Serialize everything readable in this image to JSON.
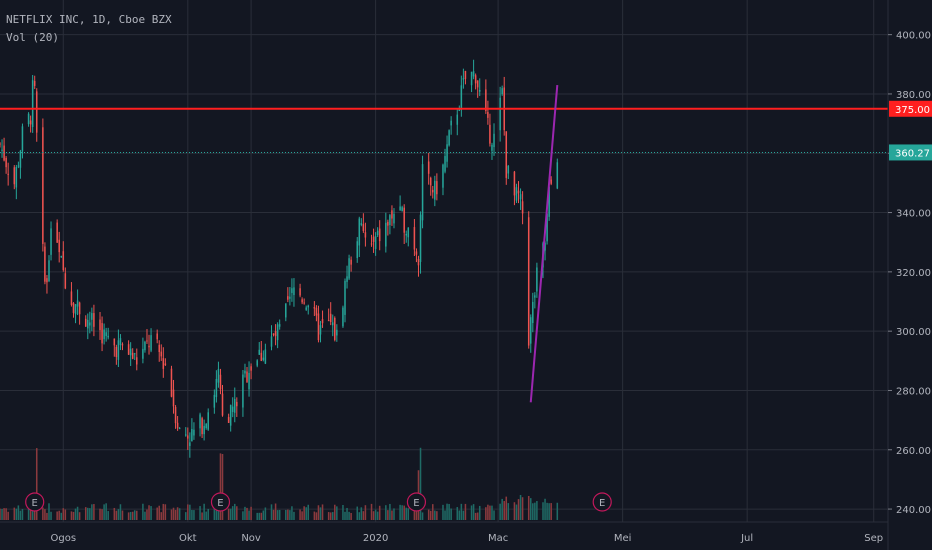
{
  "header": {
    "symbol_line": "NETFLIX INC, 1D, Cboe BZX",
    "volume_label": "Vol (20)"
  },
  "colors": {
    "background": "#131722",
    "grid": "#2a2e39",
    "up": "#26a69a",
    "down": "#ef5350",
    "up_volume": "#1f6b66",
    "down_volume": "#8b3a3e",
    "resistance_line": "#ff1f1f",
    "price_line": "#26a69a",
    "trend_line": "#9c27b0",
    "earnings_marker": "#c2185b"
  },
  "chart_data": {
    "type": "candlestick",
    "title": "NETFLIX INC, 1D, Cboe BZX",
    "ylim": [
      238,
      410
    ],
    "y_ticks": [
      "240.00",
      "260.00",
      "280.00",
      "300.00",
      "320.00",
      "340.00",
      "360.00",
      "380.00",
      "400.00"
    ],
    "x_ticks": [
      "Ogos",
      "Okt",
      "Nov",
      "2020",
      "Mac",
      "Mei",
      "Jul",
      "Sep"
    ],
    "time_range": [
      "2019-07-01",
      "2020-09-08"
    ],
    "horizontal_lines": [
      {
        "price": 375.0,
        "label": "375.00",
        "style": "solid",
        "color": "#ff1f1f"
      },
      {
        "price": 360.27,
        "label": "360.27",
        "style": "dotted",
        "color": "#26a69a"
      }
    ],
    "trend_line": {
      "start": {
        "date": "2020-03-17",
        "price": 276
      },
      "end": {
        "date": "2020-03-30",
        "price": 383
      }
    },
    "earnings_markers": {
      "label": "E",
      "dates": [
        "2019-07-18",
        "2019-10-17",
        "2020-01-21",
        "2020-04-21"
      ]
    },
    "daily_closes": [
      [
        "2019-07-01",
        363
      ],
      [
        "2019-07-08",
        350
      ],
      [
        "2019-07-12",
        366
      ],
      [
        "2019-07-16",
        373
      ],
      [
        "2019-07-17",
        381
      ],
      [
        "2019-07-18",
        380
      ],
      [
        "2019-07-19",
        365
      ],
      [
        "2019-07-22",
        326
      ],
      [
        "2019-07-24",
        315
      ],
      [
        "2019-07-26",
        335
      ],
      [
        "2019-07-30",
        325
      ],
      [
        "2019-08-05",
        311
      ],
      [
        "2019-08-12",
        305
      ],
      [
        "2019-08-19",
        300
      ],
      [
        "2019-08-26",
        295
      ],
      [
        "2019-08-30",
        295
      ],
      [
        "2019-09-06",
        290
      ],
      [
        "2019-09-13",
        297
      ],
      [
        "2019-09-20",
        289
      ],
      [
        "2019-09-27",
        266
      ],
      [
        "2019-10-03",
        265
      ],
      [
        "2019-10-09",
        270
      ],
      [
        "2019-10-14",
        280
      ],
      [
        "2019-10-16",
        285
      ],
      [
        "2019-10-18",
        270
      ],
      [
        "2019-10-24",
        275
      ],
      [
        "2019-10-31",
        288
      ],
      [
        "2019-11-08",
        294
      ],
      [
        "2019-11-15",
        300
      ],
      [
        "2019-11-22",
        314
      ],
      [
        "2019-11-29",
        310
      ],
      [
        "2019-12-04",
        300
      ],
      [
        "2019-12-10",
        302
      ],
      [
        "2019-12-13",
        298
      ],
      [
        "2019-12-18",
        320
      ],
      [
        "2019-12-24",
        335
      ],
      [
        "2019-12-30",
        328
      ],
      [
        "2020-01-06",
        335
      ],
      [
        "2020-01-10",
        340
      ],
      [
        "2020-01-14",
        338
      ],
      [
        "2020-01-17",
        335
      ],
      [
        "2020-01-22",
        326
      ],
      [
        "2020-01-24",
        353
      ],
      [
        "2020-01-30",
        347
      ],
      [
        "2020-02-03",
        355
      ],
      [
        "2020-02-07",
        368
      ],
      [
        "2020-02-12",
        380
      ],
      [
        "2020-02-14",
        385
      ],
      [
        "2020-02-19",
        387
      ],
      [
        "2020-02-21",
        380
      ],
      [
        "2020-02-25",
        368
      ],
      [
        "2020-02-28",
        365
      ],
      [
        "2020-03-03",
        380
      ],
      [
        "2020-03-05",
        355
      ],
      [
        "2020-03-09",
        345
      ],
      [
        "2020-03-11",
        345
      ],
      [
        "2020-03-13",
        340
      ],
      [
        "2020-03-16",
        298
      ],
      [
        "2020-03-18",
        308
      ],
      [
        "2020-03-20",
        318
      ],
      [
        "2020-03-24",
        330
      ],
      [
        "2020-03-26",
        346
      ],
      [
        "2020-03-30",
        360
      ]
    ]
  }
}
